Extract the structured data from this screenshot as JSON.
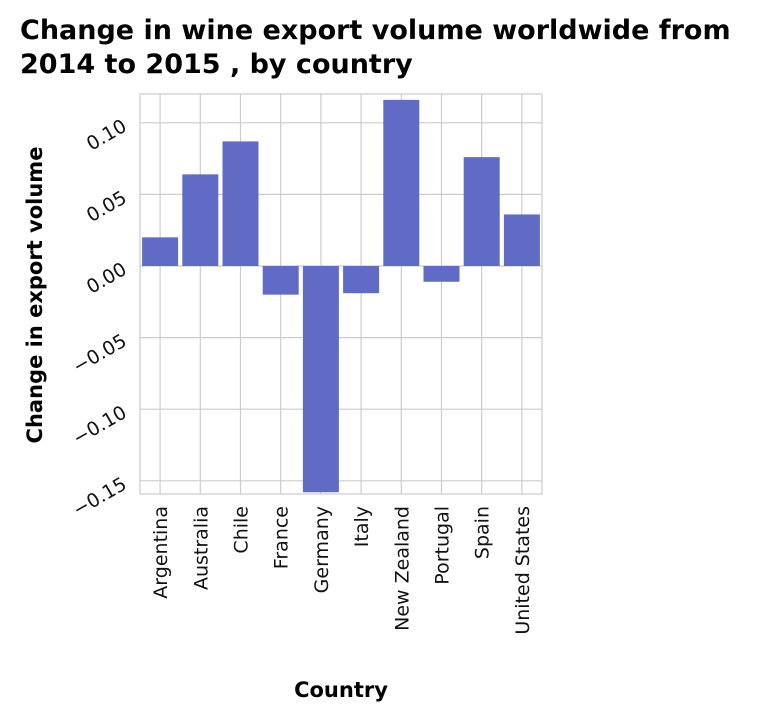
{
  "chart_data": {
    "type": "bar",
    "title_lines": [
      "Change in wine export volume worldwide from",
      "2014 to 2015 , by country"
    ],
    "xlabel": "Country",
    "ylabel": "Change in export volume",
    "categories": [
      "Argentina",
      "Australia",
      "Chile",
      "France",
      "Germany",
      "Italy",
      "New Zealand",
      "Portugal",
      "Spain",
      "United States"
    ],
    "values": [
      0.02,
      0.064,
      0.087,
      -0.02,
      -0.158,
      -0.019,
      0.116,
      -0.011,
      0.076,
      0.036
    ],
    "yticks": [
      0.1,
      0.05,
      0.0,
      -0.05,
      -0.1,
      -0.15
    ],
    "ytick_labels": [
      "0.10",
      "0.05",
      "0.00",
      "−0.05",
      "−0.10",
      "−0.15"
    ],
    "ylim": [
      -0.159,
      0.12
    ],
    "grid": true,
    "bar_color": "#5f6bc4",
    "grid_color": "#cccccc"
  }
}
